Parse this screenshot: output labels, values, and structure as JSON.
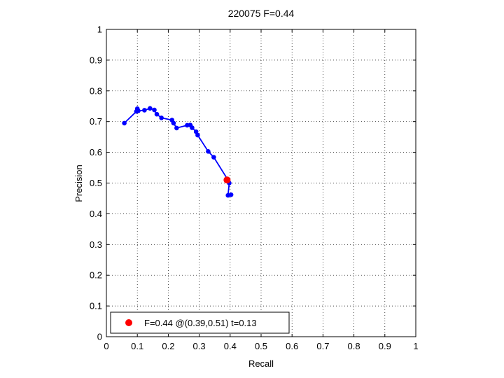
{
  "chart_data": {
    "type": "line",
    "title": "220075 F=0.44",
    "xlabel": "Recall",
    "ylabel": "Precision",
    "xlim": [
      0,
      1
    ],
    "ylim": [
      0,
      1
    ],
    "xticks": [
      "0",
      "0.1",
      "0.2",
      "0.3",
      "0.4",
      "0.5",
      "0.6",
      "0.7",
      "0.8",
      "0.9",
      "1"
    ],
    "yticks": [
      "0",
      "0.1",
      "0.2",
      "0.3",
      "0.4",
      "0.5",
      "0.6",
      "0.7",
      "0.8",
      "0.9",
      "1"
    ],
    "grid": true,
    "series": [
      {
        "color": "#0000ff",
        "marker": "circle",
        "points": [
          [
            0.058,
            0.695
          ],
          [
            0.097,
            0.733
          ],
          [
            0.1,
            0.742
          ],
          [
            0.103,
            0.735
          ],
          [
            0.123,
            0.737
          ],
          [
            0.141,
            0.743
          ],
          [
            0.155,
            0.738
          ],
          [
            0.163,
            0.724
          ],
          [
            0.178,
            0.712
          ],
          [
            0.212,
            0.705
          ],
          [
            0.217,
            0.695
          ],
          [
            0.227,
            0.679
          ],
          [
            0.261,
            0.688
          ],
          [
            0.271,
            0.689
          ],
          [
            0.277,
            0.68
          ],
          [
            0.29,
            0.667
          ],
          [
            0.295,
            0.656
          ],
          [
            0.329,
            0.603
          ],
          [
            0.347,
            0.584
          ],
          [
            0.393,
            0.51
          ],
          [
            0.397,
            0.5
          ],
          [
            0.393,
            0.46
          ],
          [
            0.403,
            0.462
          ]
        ]
      }
    ],
    "highlight": {
      "x": 0.39,
      "y": 0.51,
      "color": "#ff0000"
    },
    "legend": {
      "location": "bottom-left",
      "entries": [
        {
          "label": "F=0.44 @(0.39,0.51) t=0.13",
          "color": "#ff0000"
        }
      ]
    }
  }
}
